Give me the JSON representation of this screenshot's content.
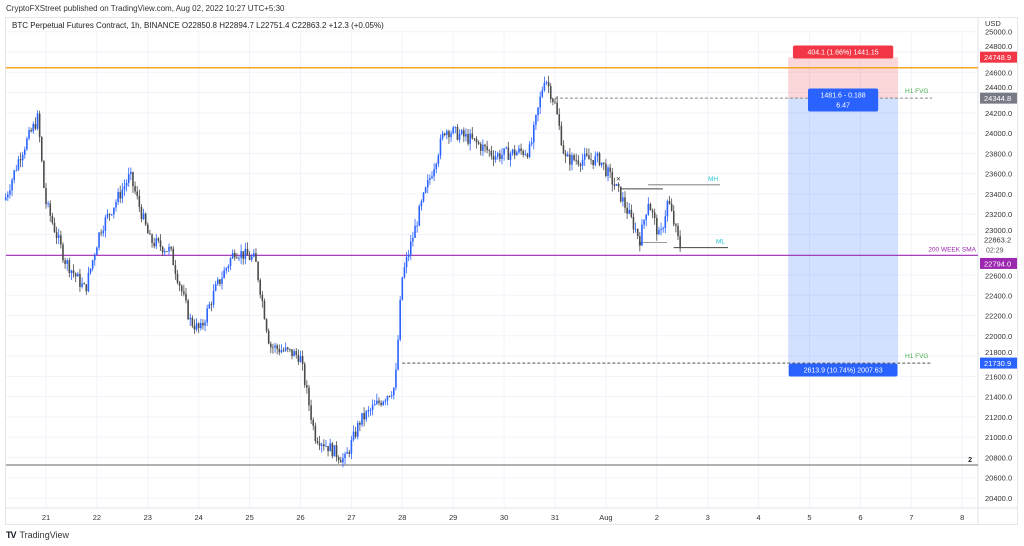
{
  "publisher_line": "CryptoFXStreet published on TradingView.com, Aug 02, 2022 10:27 UTC+5:30",
  "legend": "BTC Perpetual Futures Contract, 1h, BINANCE  O22850.8  H22894.7  L22751.4  C22863.2  +12.3 (+0.05%)",
  "branding": {
    "logo_mark": "TV",
    "name": "TradingView"
  },
  "colors": {
    "up": "#2962ff",
    "down": "#4a4a4a",
    "resistance": "#f5a623",
    "sma": "#9c27b0",
    "stop": "#f23645",
    "target": "#2962ff",
    "fvg": "#4caf50",
    "structure": "#26c6da"
  },
  "chart_data": {
    "type": "candlestick",
    "title": "BTC Perpetual Futures Contract, 1h, BINANCE",
    "currency_label": "USD",
    "x_unit": "days since Jul 21 00:00",
    "x_tick_labels": [
      "21",
      "22",
      "23",
      "24",
      "25",
      "26",
      "27",
      "28",
      "29",
      "30",
      "31",
      "Aug",
      "2",
      "3",
      "4",
      "5",
      "6",
      "7",
      "8"
    ],
    "y_tick_labels": [
      "25000.0",
      "24800.0",
      "24600.0",
      "24400.0",
      "24200.0",
      "24000.0",
      "23800.0",
      "23600.0",
      "23400.0",
      "23200.0",
      "23000.0",
      "22600.0",
      "22400.0",
      "22200.0",
      "22000.0",
      "21800.0",
      "21600.0",
      "21400.0",
      "21200.0",
      "21000.0",
      "20800.0",
      "20600.0",
      "20400.0"
    ],
    "y_tick_values": [
      25000,
      24800,
      24600,
      24400,
      24200,
      24000,
      23800,
      23600,
      23400,
      23200,
      23000,
      22600,
      22400,
      22200,
      22000,
      21800,
      21600,
      21400,
      21200,
      21000,
      20800,
      20600,
      20400
    ],
    "ylim": [
      20300,
      25100
    ],
    "xlim": [
      -0.9,
      18.7
    ],
    "close_waypoints": [
      [
        -0.81,
        23340
      ],
      [
        -0.51,
        23780
      ],
      [
        -0.16,
        24150
      ],
      [
        -0.02,
        23340
      ],
      [
        0.37,
        22750
      ],
      [
        0.77,
        22450
      ],
      [
        1.06,
        23040
      ],
      [
        1.65,
        23580
      ],
      [
        2.04,
        22940
      ],
      [
        2.44,
        22840
      ],
      [
        2.83,
        22150
      ],
      [
        3.03,
        22050
      ],
      [
        3.32,
        22450
      ],
      [
        3.71,
        22840
      ],
      [
        4.11,
        22750
      ],
      [
        4.4,
        21900
      ],
      [
        4.99,
        21800
      ],
      [
        5.28,
        21020
      ],
      [
        5.87,
        20770
      ],
      [
        6.17,
        21160
      ],
      [
        6.86,
        21500
      ],
      [
        6.99,
        22560
      ],
      [
        7.35,
        23250
      ],
      [
        7.84,
        24040
      ],
      [
        8.33,
        23940
      ],
      [
        8.82,
        23780
      ],
      [
        9.51,
        23830
      ],
      [
        9.8,
        24570
      ],
      [
        10.0,
        24280
      ],
      [
        10.2,
        23740
      ],
      [
        10.88,
        23740
      ],
      [
        11.28,
        23390
      ],
      [
        11.67,
        22950
      ],
      [
        11.83,
        23340
      ],
      [
        12.06,
        22950
      ],
      [
        12.22,
        23340
      ],
      [
        12.46,
        22863
      ]
    ],
    "last_price": {
      "label": "22863.2",
      "countdown": "02:29"
    },
    "levels": [
      {
        "name": "resistance",
        "price": 24645,
        "label": ""
      },
      {
        "name": "sma",
        "price": 22794,
        "label": "200 WEEK SMA",
        "axis_label": "22794.0"
      },
      {
        "name": "range-low",
        "price": 20725,
        "label": "2"
      },
      {
        "name": "fvg-high",
        "price": 24344.8,
        "label": "H1 FVG",
        "axis_label": "24344.8"
      },
      {
        "name": "fvg-low",
        "price": 21730.9,
        "label": "H1 FVG",
        "axis_label": "21730.9"
      },
      {
        "name": "mh",
        "price": 23490,
        "label": "MH"
      },
      {
        "name": "ml",
        "price": 22870,
        "label": "ML"
      }
    ],
    "short_position": {
      "entry": 24344.8,
      "stop": 24748.9,
      "target": 21730.9,
      "t_start": 14.58,
      "t_end": 16.74,
      "stop_label": "404.1 (1.66%) 1441.15",
      "entry_label_1": "1481.6 - 0.188",
      "entry_label_2": "6.47",
      "target_label": "2613.9 (10.74%) 2007.63",
      "stop_axis_label": "24748.9"
    }
  }
}
